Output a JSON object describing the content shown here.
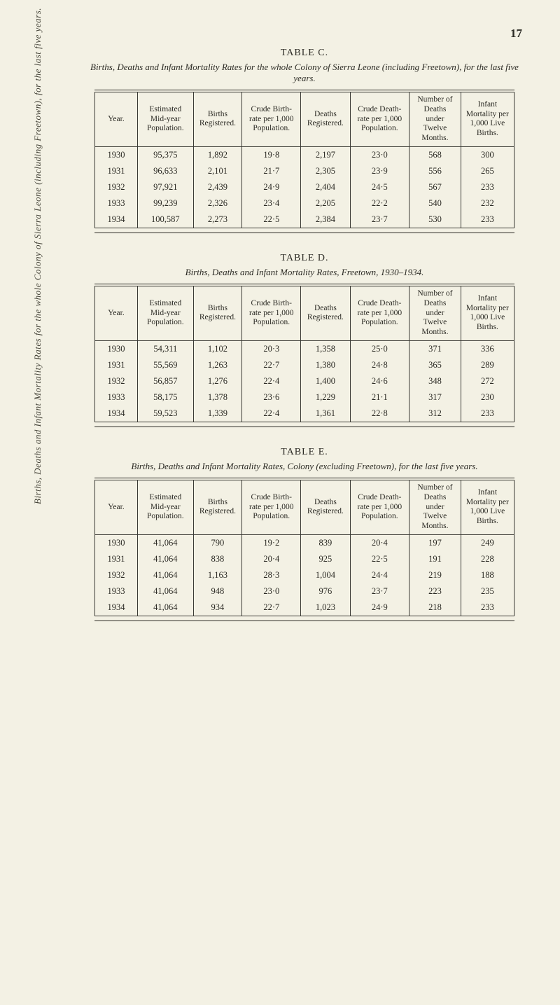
{
  "page_number": "17",
  "side_label": "Births, Deaths and Infant Mortality Rates for the whole Colony of Sierra Leone (including Freetown), for the last five years.",
  "colors": {
    "background": "#f3f1e4",
    "text": "#2b2a24",
    "rule": "#3a3a34"
  },
  "typography": {
    "family": "Times New Roman",
    "body_pt": 12.5,
    "header_pt": 11.5,
    "caption_pt": 14
  },
  "tableC": {
    "caption": "TABLE  C.",
    "subtitle": "Births, Deaths and Infant Mortality Rates for the whole Colony of Sierra Leone (including Freetown), for the last five years.",
    "columns": [
      "Year.",
      "Estimated Mid-year Population.",
      "Births Registered.",
      "Crude Birth-rate per 1,000 Population.",
      "Deaths Registered.",
      "Crude Death-rate per 1,000 Population.",
      "Number of Deaths under Twelve Months.",
      "Infant Mortality per 1,000 Live Births."
    ],
    "rows": [
      [
        "1930",
        "95,375",
        "1,892",
        "19·8",
        "2,197",
        "23·0",
        "568",
        "300"
      ],
      [
        "1931",
        "96,633",
        "2,101",
        "21·7",
        "2,305",
        "23·9",
        "556",
        "265"
      ],
      [
        "1932",
        "97,921",
        "2,439",
        "24·9",
        "2,404",
        "24·5",
        "567",
        "233"
      ],
      [
        "1933",
        "99,239",
        "2,326",
        "23·4",
        "2,205",
        "22·2",
        "540",
        "232"
      ],
      [
        "1934",
        "100,587",
        "2,273",
        "22·5",
        "2,384",
        "23·7",
        "530",
        "233"
      ]
    ]
  },
  "tableD": {
    "caption": "TABLE  D.",
    "subtitle": "Births, Deaths and Infant Mortality Rates, Freetown, 1930–1934.",
    "columns": [
      "Year.",
      "Estimated Mid-year Population.",
      "Births Registered.",
      "Crude Birth-rate per 1,000 Population.",
      "Deaths Registered.",
      "Crude Death-rate per 1,000 Population.",
      "Number of Deaths under Twelve Months.",
      "Infant Mortality per 1,000 Live Births."
    ],
    "rows": [
      [
        "1930",
        "54,311",
        "1,102",
        "20·3",
        "1,358",
        "25·0",
        "371",
        "336"
      ],
      [
        "1931",
        "55,569",
        "1,263",
        "22·7",
        "1,380",
        "24·8",
        "365",
        "289"
      ],
      [
        "1932",
        "56,857",
        "1,276",
        "22·4",
        "1,400",
        "24·6",
        "348",
        "272"
      ],
      [
        "1933",
        "58,175",
        "1,378",
        "23·6",
        "1,229",
        "21·1",
        "317",
        "230"
      ],
      [
        "1934",
        "59,523",
        "1,339",
        "22·4",
        "1,361",
        "22·8",
        "312",
        "233"
      ]
    ]
  },
  "tableE": {
    "caption": "TABLE  E.",
    "subtitle": "Births, Deaths and Infant Mortality Rates, Colony (excluding Freetown), for the last five years.",
    "columns": [
      "Year.",
      "Estimated Mid-year Population.",
      "Births Registered.",
      "Crude Birth-rate per 1,000 Population.",
      "Deaths Registered.",
      "Crude Death-rate per 1,000 Population.",
      "Number of Deaths under Twelve Months.",
      "Infant Mortality per 1,000 Live Births."
    ],
    "rows": [
      [
        "1930",
        "41,064",
        "790",
        "19·2",
        "839",
        "20·4",
        "197",
        "249"
      ],
      [
        "1931",
        "41,064",
        "838",
        "20·4",
        "925",
        "22·5",
        "191",
        "228"
      ],
      [
        "1932",
        "41,064",
        "1,163",
        "28·3",
        "1,004",
        "24·4",
        "219",
        "188"
      ],
      [
        "1933",
        "41,064",
        "948",
        "23·0",
        "976",
        "23·7",
        "223",
        "235"
      ],
      [
        "1934",
        "41,064",
        "934",
        "22·7",
        "1,023",
        "24·9",
        "218",
        "233"
      ]
    ]
  }
}
